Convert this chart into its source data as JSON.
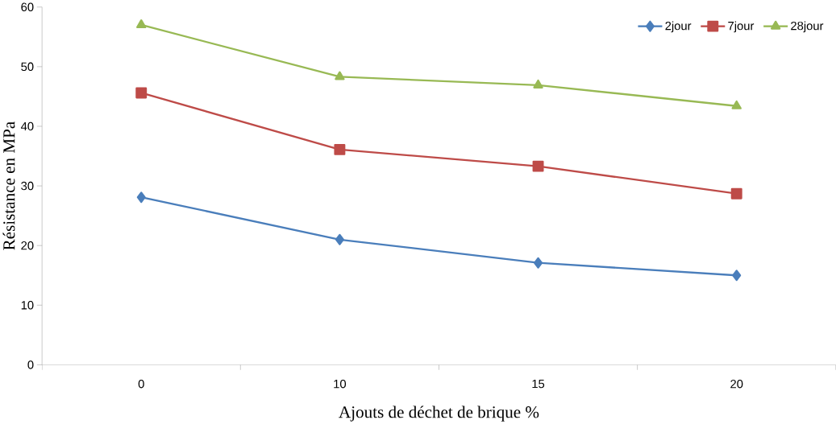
{
  "chart_data": {
    "type": "line",
    "xlabel": "Ajouts de déchet de brique %",
    "ylabel": "Résistance en MPa",
    "categories": [
      "0",
      "10",
      "15",
      "20"
    ],
    "series": [
      {
        "name": "2jour",
        "color": "#4a7ebb",
        "marker": "diamond",
        "values": [
          28.1,
          21.0,
          17.1,
          15.0
        ]
      },
      {
        "name": "7jour",
        "color": "#be4b48",
        "marker": "square",
        "values": [
          45.6,
          36.1,
          33.3,
          28.7
        ]
      },
      {
        "name": "28jour",
        "color": "#98b954",
        "marker": "triangle",
        "values": [
          57.0,
          48.3,
          46.9,
          43.4
        ]
      }
    ],
    "ylim": [
      0,
      60
    ],
    "yticks": [
      0,
      10,
      20,
      30,
      40,
      50,
      60
    ],
    "grid": false,
    "legend": "top right",
    "line_style": "solid"
  }
}
